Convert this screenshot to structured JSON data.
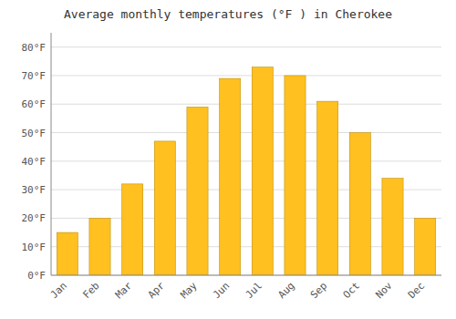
{
  "chart_data": {
    "type": "bar",
    "title": "Average monthly temperatures (°F ) in Cherokee",
    "categories": [
      "Jan",
      "Feb",
      "Mar",
      "Apr",
      "May",
      "Jun",
      "Jul",
      "Aug",
      "Sep",
      "Oct",
      "Nov",
      "Dec"
    ],
    "values": [
      15,
      20,
      32,
      47,
      59,
      69,
      73,
      70,
      61,
      50,
      34,
      20
    ],
    "color": "#FFC020",
    "ylim": [
      0,
      85
    ],
    "yticks": [
      {
        "value": 0,
        "label": "0°F"
      },
      {
        "value": 10,
        "label": "10°F"
      },
      {
        "value": 20,
        "label": "20°F"
      },
      {
        "value": 30,
        "label": "30°F"
      },
      {
        "value": 40,
        "label": "40°F"
      },
      {
        "value": 50,
        "label": "50°F"
      },
      {
        "value": 60,
        "label": "60°F"
      },
      {
        "value": 70,
        "label": "70°F"
      },
      {
        "value": 80,
        "label": "80°F"
      }
    ],
    "grid": true
  }
}
